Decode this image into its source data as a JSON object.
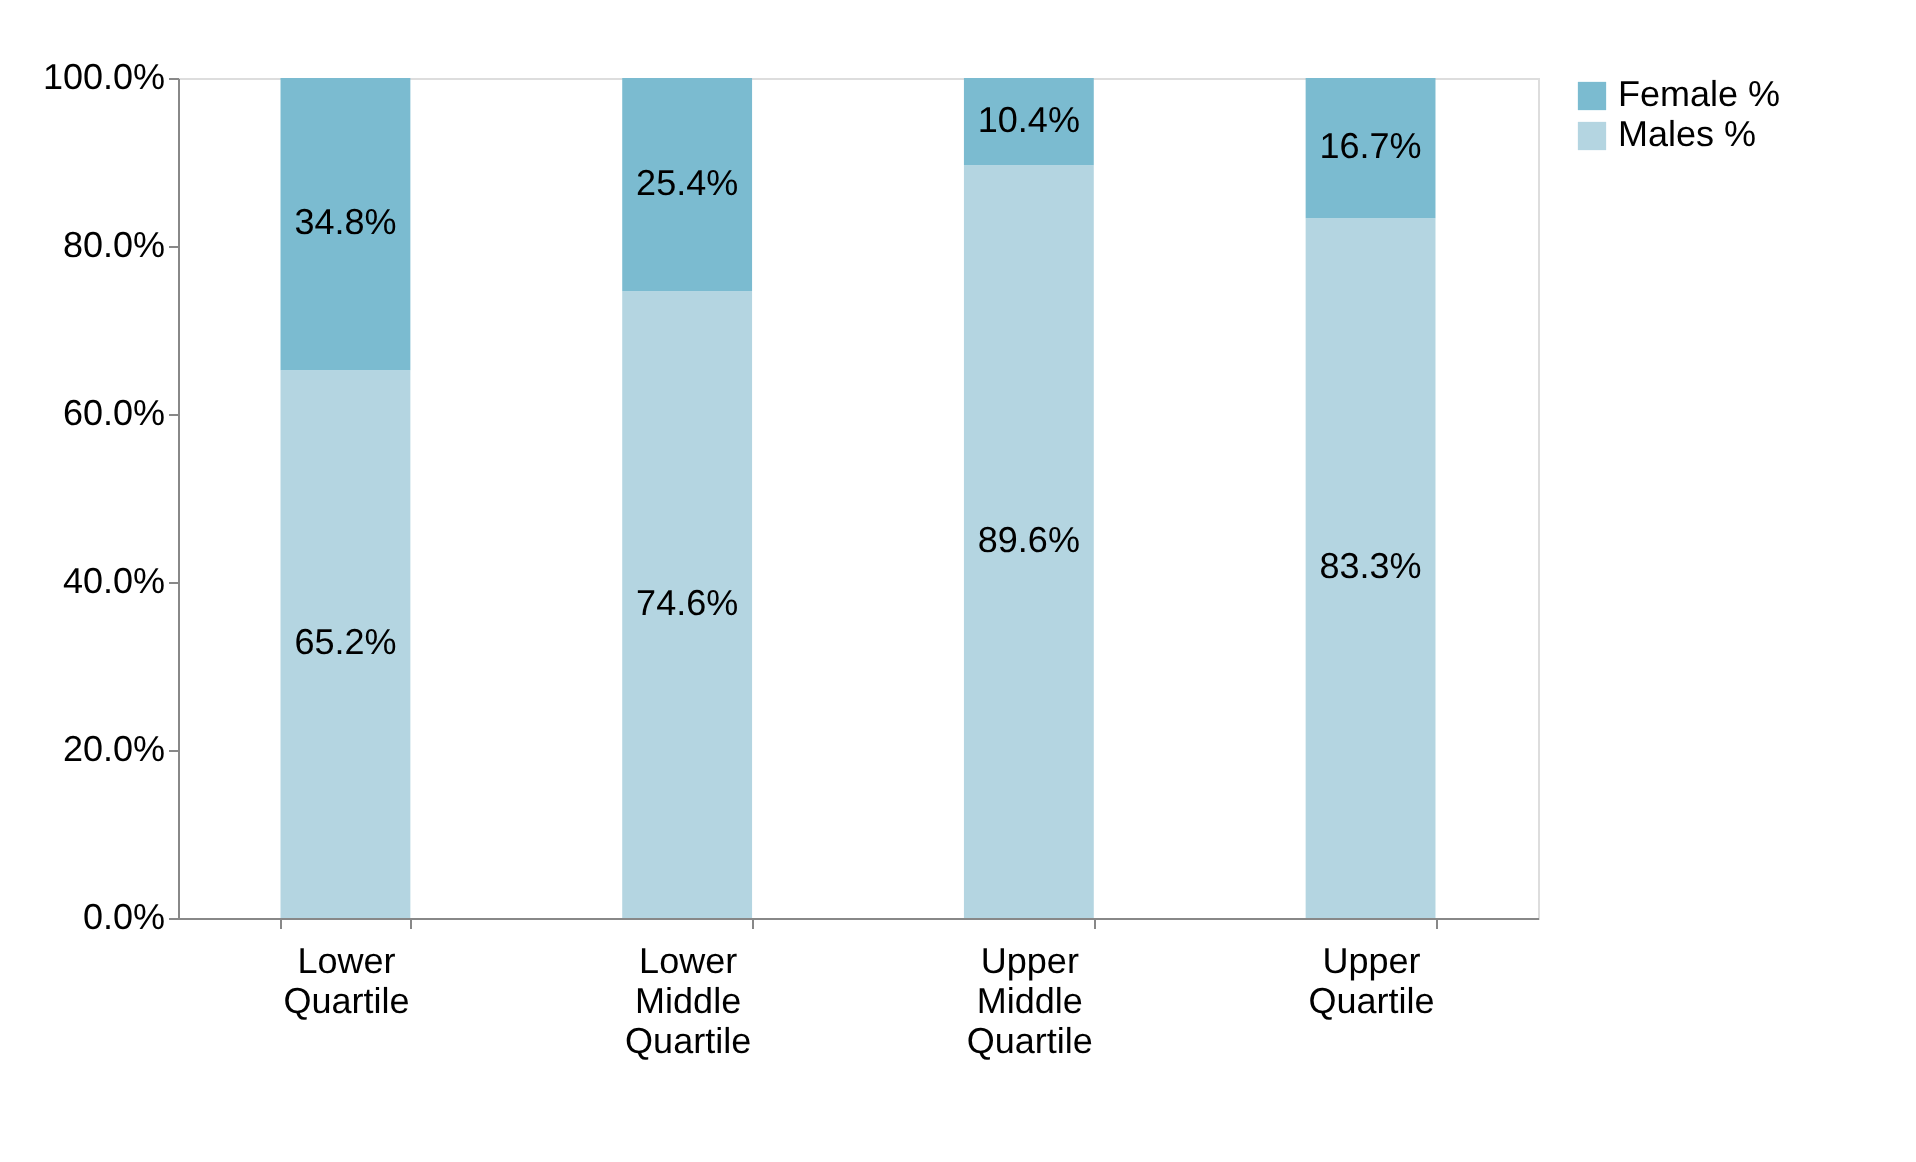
{
  "chart_data": {
    "type": "bar",
    "stacked": true,
    "categories": [
      "Lower Quartile",
      "Lower Middle Quartile",
      "Upper Middle Quartile",
      "Upper Quartile"
    ],
    "series": [
      {
        "name": "Males %",
        "color": "#b4d5e1",
        "values": [
          65.2,
          74.6,
          89.6,
          83.3
        ],
        "value_labels": [
          "65.2%",
          "74.6%",
          "89.6%",
          "83.3%"
        ]
      },
      {
        "name": "Female %",
        "color": "#7bbbd0",
        "values": [
          34.8,
          25.4,
          10.4,
          16.7
        ],
        "value_labels": [
          "34.8%",
          "25.4%",
          "10.4%",
          "16.7%"
        ]
      }
    ],
    "ylim": [
      0,
      100
    ],
    "yticks": [
      {
        "value": 0,
        "label": "0.0%"
      },
      {
        "value": 20,
        "label": "20.0%"
      },
      {
        "value": 40,
        "label": "40.0%"
      },
      {
        "value": 60,
        "label": "60.0%"
      },
      {
        "value": 80,
        "label": "80.0%"
      },
      {
        "value": 100,
        "label": "100.0%"
      }
    ],
    "grid": false,
    "legend": "right"
  }
}
